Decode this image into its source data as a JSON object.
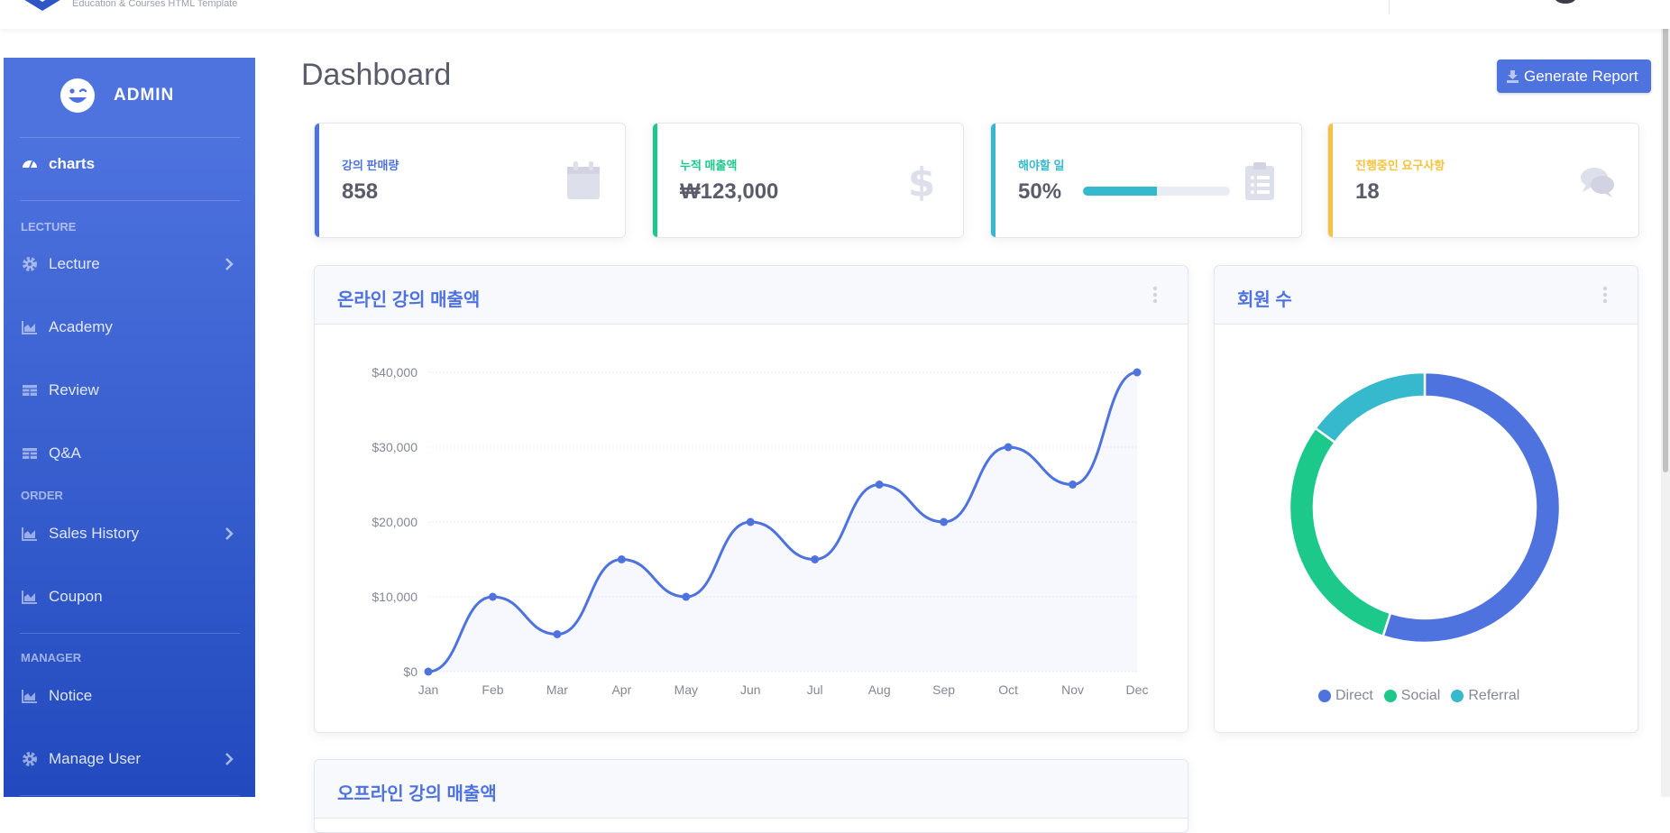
{
  "topbar": {
    "logo_text": "Education & Courses HTML Template"
  },
  "sidebar": {
    "brand": "ADMIN",
    "items": [
      {
        "label": "charts",
        "icon": "tachometer-icon",
        "active": true
      },
      {
        "heading": "LECTURE"
      },
      {
        "label": "Lecture",
        "icon": "cog-icon",
        "chevron": true
      },
      {
        "label": "Academy",
        "icon": "chart-area-icon"
      },
      {
        "label": "Review",
        "icon": "table-icon"
      },
      {
        "label": "Q&A",
        "icon": "table-icon"
      },
      {
        "heading": "ORDER"
      },
      {
        "label": "Sales History",
        "icon": "chart-area-icon",
        "chevron": true
      },
      {
        "label": "Coupon",
        "icon": "chart-area-icon"
      },
      {
        "heading": "MANAGER"
      },
      {
        "label": "Notice",
        "icon": "chart-area-icon"
      },
      {
        "label": "Manage User",
        "icon": "cog-icon",
        "chevron": true
      }
    ]
  },
  "main": {
    "title": "Dashboard",
    "generate_label": "Generate Report",
    "kpis": [
      {
        "label": "강의 판매량",
        "value": "858",
        "color": "#4e73df",
        "icon": "calendar-icon"
      },
      {
        "label": "누적 매출액",
        "value": "₩123,000",
        "color": "#1cc88a",
        "icon": "dollar-icon"
      },
      {
        "label": "해야할 일",
        "value": "50%",
        "color": "#36b9cc",
        "icon": "clipboard-list-icon",
        "progress": 0.5
      },
      {
        "label": "진행중인 요구사항",
        "value": "18",
        "color": "#f6c23e",
        "icon": "comments-icon"
      }
    ],
    "line_panel_title": "온라인 강의 매출액",
    "donut_panel_title": "회원 수",
    "bottom_panel_title": "오프라인 강의 매출액"
  },
  "chart_data": [
    {
      "type": "line",
      "title": "온라인 강의 매출액",
      "categories": [
        "Jan",
        "Feb",
        "Mar",
        "Apr",
        "May",
        "Jun",
        "Jul",
        "Aug",
        "Sep",
        "Oct",
        "Nov",
        "Dec"
      ],
      "series": [
        {
          "values": [
            0,
            10000,
            5000,
            15000,
            10000,
            20000,
            15000,
            25000,
            20000,
            30000,
            25000,
            40000
          ]
        }
      ],
      "yticks": [
        "$0",
        "$10,000",
        "$20,000",
        "$30,000",
        "$40,000"
      ],
      "ylim": [
        0,
        40000
      ],
      "grid": true,
      "color": "#4e73df"
    },
    {
      "type": "pie",
      "title": "회원 수",
      "labels": [
        "Direct",
        "Social",
        "Referral"
      ],
      "values": [
        55,
        30,
        15
      ],
      "colors": [
        "#4e73df",
        "#1cc88a",
        "#36b9cc"
      ],
      "legend": "bottom"
    }
  ]
}
